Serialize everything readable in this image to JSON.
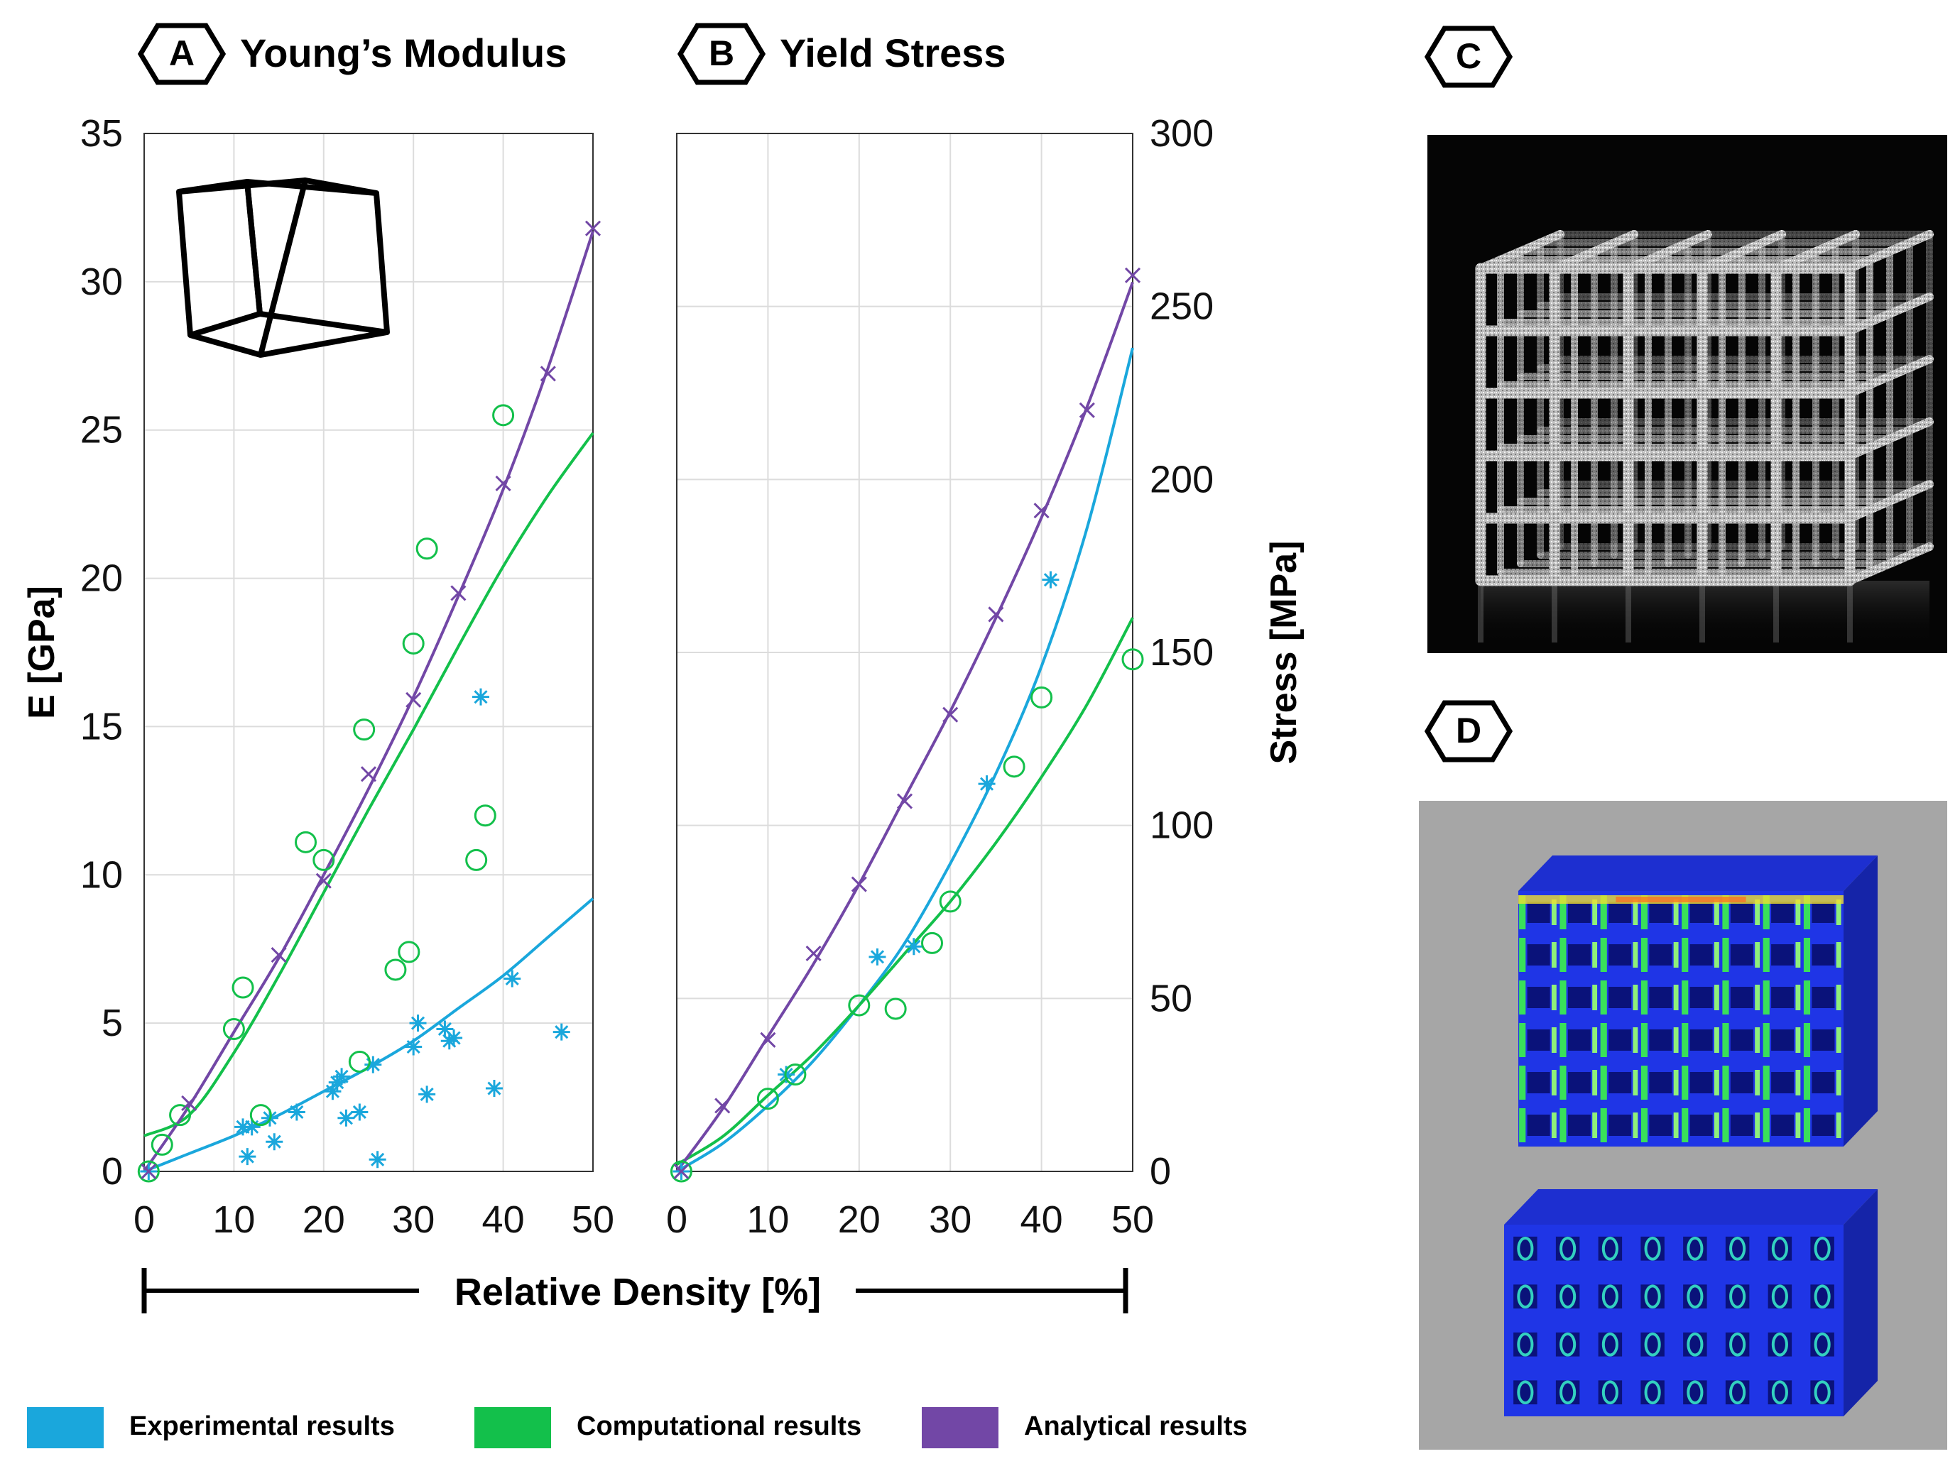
{
  "panels": {
    "a": {
      "letter": "A",
      "title": "Young’s Modulus"
    },
    "b": {
      "letter": "B",
      "title": "Yield Stress"
    },
    "c": {
      "letter": "C"
    },
    "d": {
      "letter": "D"
    }
  },
  "xaxis_label": "Relative Density [%]",
  "legend": [
    {
      "label": "Experimental results",
      "color": "#1aa7dc"
    },
    {
      "label": "Computational results",
      "color": "#13c04b"
    },
    {
      "label": "Analytical results",
      "color": "#7247a6"
    }
  ],
  "colors": {
    "experimental": "#1aa7dc",
    "computational": "#13c04b",
    "analytical": "#7247a6"
  },
  "chart_data": [
    {
      "type": "scatter",
      "title": "Young’s Modulus",
      "xlabel": "",
      "ylabel": "E [GPa]",
      "xlim": [
        0,
        50
      ],
      "ylim": [
        0,
        35
      ],
      "xticks": [
        0,
        10,
        20,
        30,
        40,
        50
      ],
      "yticks": [
        0,
        5,
        10,
        15,
        20,
        25,
        30,
        35
      ],
      "grid": true,
      "series": [
        {
          "name": "Experimental results",
          "kind": "points",
          "marker": "asterisk",
          "x": [
            0.5,
            11,
            11.5,
            12,
            14,
            14.5,
            17,
            21,
            21.5,
            22,
            22.5,
            24,
            25.5,
            26,
            30,
            30.5,
            31.5,
            33.5,
            34,
            34.5,
            37.5,
            39,
            41,
            46.5
          ],
          "y": [
            0,
            1.5,
            0.5,
            1.5,
            1.8,
            1.0,
            2.0,
            2.7,
            3.0,
            3.2,
            1.8,
            2.0,
            3.6,
            0.4,
            4.2,
            5.0,
            2.6,
            4.8,
            4.4,
            4.5,
            16.0,
            2.8,
            6.5,
            4.7
          ]
        },
        {
          "name": "Computational results",
          "kind": "points",
          "marker": "circle",
          "x": [
            0.5,
            2,
            4,
            10,
            11,
            13,
            18,
            20,
            24,
            24.5,
            28,
            29.5,
            30,
            31.5,
            37,
            38,
            40
          ],
          "y": [
            0,
            0.9,
            1.9,
            4.8,
            6.2,
            1.9,
            11.1,
            10.5,
            3.7,
            14.9,
            6.8,
            7.4,
            17.8,
            21.0,
            10.5,
            12.0,
            25.5
          ]
        },
        {
          "name": "Analytical results",
          "kind": "points",
          "marker": "cross",
          "x": [
            0.5,
            5,
            15,
            20,
            25,
            30,
            35,
            40,
            45,
            50
          ],
          "y": [
            0,
            2.3,
            7.3,
            9.8,
            13.4,
            15.9,
            19.5,
            23.2,
            26.9,
            31.8
          ]
        },
        {
          "name": "Experimental results",
          "kind": "line",
          "x": [
            0,
            5,
            10,
            15,
            20,
            25,
            30,
            35,
            40,
            45,
            50
          ],
          "y": [
            0,
            0.6,
            1.2,
            1.9,
            2.7,
            3.5,
            4.4,
            5.5,
            6.6,
            7.9,
            9.2
          ]
        },
        {
          "name": "Computational results",
          "kind": "line",
          "x": [
            0,
            5,
            10,
            15,
            20,
            25,
            30,
            35,
            40,
            45,
            50
          ],
          "y": [
            1.2,
            1.9,
            4.0,
            6.6,
            9.4,
            12.2,
            14.9,
            17.7,
            20.4,
            22.8,
            24.9
          ]
        },
        {
          "name": "Analytical results",
          "kind": "line",
          "x": [
            0,
            5,
            10,
            15,
            20,
            25,
            30,
            35,
            40,
            45,
            50
          ],
          "y": [
            0,
            2.2,
            4.7,
            7.2,
            10.0,
            12.9,
            16.0,
            19.4,
            23.0,
            27.1,
            31.7
          ]
        }
      ]
    },
    {
      "type": "scatter",
      "title": "Yield Stress",
      "xlabel": "",
      "ylabel": "Stress [MPa]",
      "xlim": [
        0,
        50
      ],
      "ylim": [
        0,
        300
      ],
      "xticks": [
        0,
        10,
        20,
        30,
        40,
        50
      ],
      "yticks": [
        0,
        50,
        100,
        150,
        200,
        250,
        300
      ],
      "grid": true,
      "series": [
        {
          "name": "Experimental results",
          "kind": "points",
          "marker": "asterisk",
          "x": [
            0.5,
            12,
            22,
            26,
            34,
            41
          ],
          "y": [
            0,
            28,
            62,
            65,
            112,
            171
          ]
        },
        {
          "name": "Computational results",
          "kind": "points",
          "marker": "circle",
          "x": [
            0.5,
            10,
            13,
            20,
            24,
            28,
            30,
            37,
            40,
            50
          ],
          "y": [
            0,
            21,
            28,
            48,
            47,
            66,
            78,
            117,
            137,
            148
          ]
        },
        {
          "name": "Analytical results",
          "kind": "points",
          "marker": "cross",
          "x": [
            0.5,
            5,
            10,
            15,
            20,
            25,
            30,
            35,
            40,
            45,
            50
          ],
          "y": [
            0,
            19,
            38,
            63,
            83,
            107,
            132,
            161,
            191,
            220,
            259
          ]
        },
        {
          "name": "Experimental results",
          "kind": "line",
          "x": [
            0,
            5,
            10,
            15,
            20,
            25,
            30,
            35,
            40,
            45,
            50
          ],
          "y": [
            0,
            8,
            19,
            32,
            48,
            66,
            89,
            115,
            146,
            186,
            238
          ]
        },
        {
          "name": "Computational results",
          "kind": "line",
          "x": [
            0,
            5,
            10,
            15,
            20,
            25,
            30,
            35,
            40,
            45,
            50
          ],
          "y": [
            2,
            10,
            22,
            34,
            48,
            63,
            78,
            95,
            114,
            135,
            160
          ]
        },
        {
          "name": "Analytical results",
          "kind": "line",
          "x": [
            0,
            5,
            10,
            15,
            20,
            25,
            30,
            35,
            40,
            45,
            50
          ],
          "y": [
            0,
            18,
            39,
            60,
            83,
            108,
            133,
            160,
            189,
            221,
            257
          ]
        }
      ]
    }
  ]
}
